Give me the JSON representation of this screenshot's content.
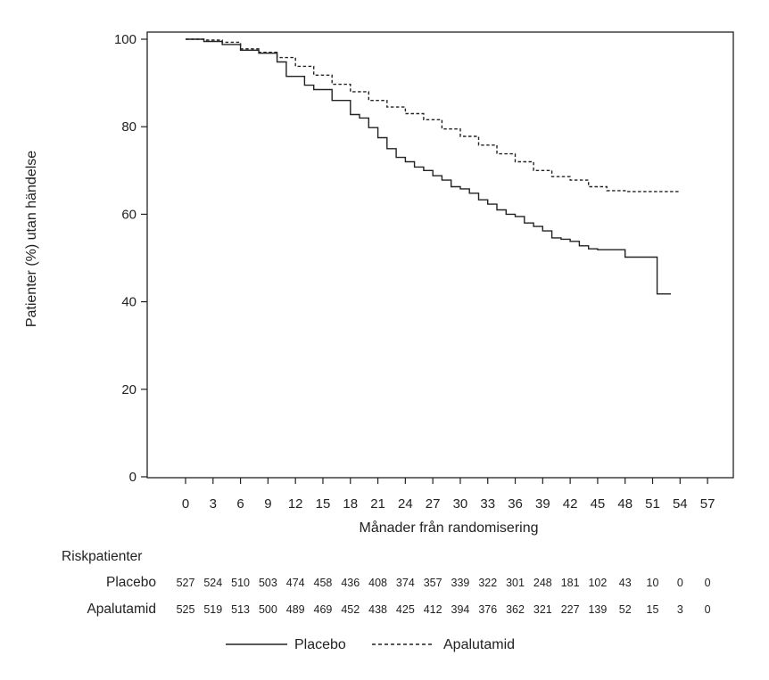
{
  "chart_data": {
    "type": "line",
    "title": "",
    "xlabel": "Månader från randomisering",
    "ylabel": "Patienter (%) utan händelse",
    "xlim": [
      -4,
      61
    ],
    "ylim": [
      0,
      100
    ],
    "x_ticks": [
      0,
      3,
      6,
      9,
      12,
      15,
      18,
      21,
      24,
      27,
      30,
      33,
      36,
      39,
      42,
      45,
      48,
      51,
      54,
      57
    ],
    "x_tick_labels": [
      "0",
      "3",
      "6",
      "9",
      "12",
      "15",
      "18",
      "21",
      "24",
      "27",
      "30",
      "33",
      "36",
      "39",
      "42",
      "45",
      "48",
      "51",
      "54",
      "57"
    ],
    "y_ticks": [
      0,
      20,
      40,
      60,
      80,
      100
    ],
    "y_tick_labels": [
      "0",
      "20",
      "40",
      "60",
      "80",
      "100"
    ],
    "grid": false,
    "legend_position": "bottom-center",
    "series": [
      {
        "name": "Placebo",
        "style": "solid",
        "x": [
          0,
          2,
          4,
          6,
          8,
          10,
          11,
          13,
          14,
          16,
          18,
          19,
          20,
          21,
          22,
          23,
          24,
          25,
          26,
          27,
          28,
          29,
          30,
          31,
          32,
          33,
          34,
          35,
          36,
          37,
          38,
          39,
          40,
          41,
          42,
          43,
          44,
          45,
          48,
          48,
          51.5,
          51.5,
          53
        ],
        "y": [
          100,
          99.5,
          98.8,
          97.5,
          96.8,
          94.8,
          91.5,
          89.5,
          88.5,
          86,
          82.8,
          82,
          79.8,
          77.5,
          75,
          73,
          72,
          70.8,
          70,
          68.8,
          67.8,
          66.3,
          65.8,
          64.8,
          63.3,
          62.3,
          61,
          60,
          59.5,
          58,
          57.2,
          56.2,
          54.6,
          54.3,
          53.8,
          52.8,
          52.1,
          51.9,
          51.9,
          50.2,
          50.2,
          41.8,
          41.8
        ]
      },
      {
        "name": "Apalutamid",
        "style": "dashed",
        "x": [
          0,
          2,
          4,
          6,
          8,
          10,
          12,
          14,
          16,
          18,
          20,
          22,
          24,
          26,
          28,
          30,
          32,
          34,
          36,
          38,
          40,
          42,
          44,
          46,
          48,
          50,
          52,
          54
        ],
        "y": [
          100,
          99.8,
          99.3,
          97.8,
          97,
          95.8,
          93.8,
          91.8,
          89.7,
          88,
          86,
          84.5,
          83,
          81.6,
          79.5,
          77.8,
          75.8,
          73.8,
          72,
          70,
          68.6,
          67.8,
          66.3,
          65.4,
          65.2,
          65.2,
          65.2,
          65.2
        ]
      }
    ]
  },
  "risk_table": {
    "title": "Riskpatienter",
    "rows": [
      {
        "label": "Placebo",
        "values": [
          "527",
          "524",
          "510",
          "503",
          "474",
          "458",
          "436",
          "408",
          "374",
          "357",
          "339",
          "322",
          "301",
          "248",
          "181",
          "102",
          "43",
          "10",
          "0",
          "0"
        ]
      },
      {
        "label": "Apalutamid",
        "values": [
          "525",
          "519",
          "513",
          "500",
          "489",
          "469",
          "452",
          "438",
          "425",
          "412",
          "394",
          "376",
          "362",
          "321",
          "227",
          "139",
          "52",
          "15",
          "3",
          "0"
        ]
      }
    ]
  },
  "legend": {
    "placebo_label": "Placebo",
    "apalutamid_label": "Apalutamid"
  }
}
